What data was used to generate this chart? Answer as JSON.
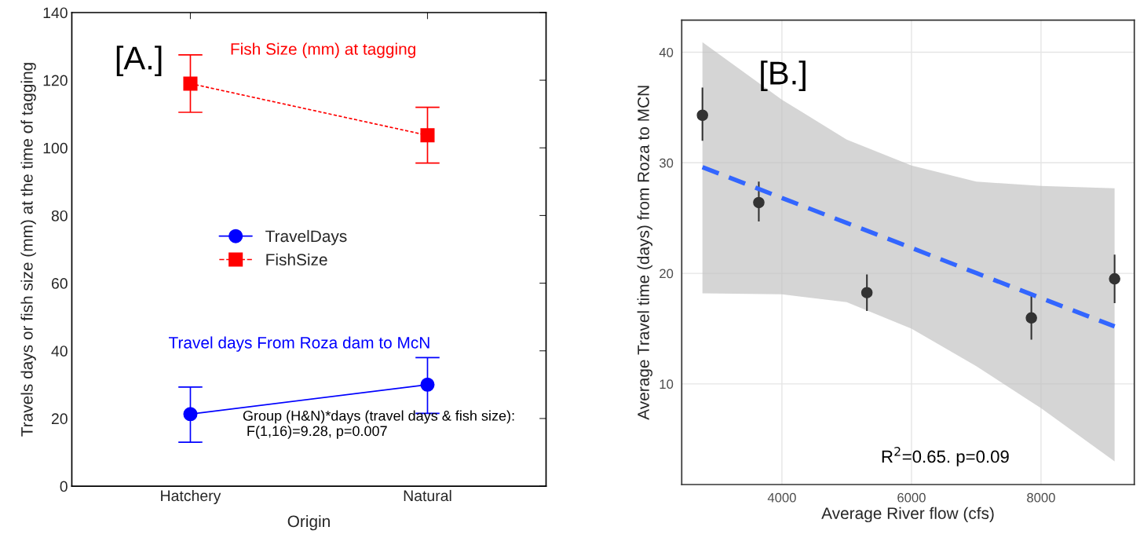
{
  "chart_data": [
    {
      "type": "line",
      "categories": [
        "Hatchery",
        "Natural"
      ],
      "xlabel": "Origin",
      "ylabel": "Travels days or fish size (mm) at the time of tagging",
      "series": [
        {
          "name": "TravelDays",
          "color": "#0000ff",
          "values": [
            21.3,
            30
          ],
          "errors": [
            [
              13,
              29.3
            ],
            [
              21.5,
              38
            ]
          ],
          "marker": "circle",
          "line_style": "solid"
        },
        {
          "name": "FishSize",
          "color": "#ff0000",
          "values": [
            119,
            103.7
          ],
          "errors": [
            [
              110.5,
              127.5
            ],
            [
              95.5,
              112
            ]
          ],
          "marker": "square",
          "line_style": "dashed"
        }
      ],
      "ylim": [
        0,
        140
      ],
      "yticks": [
        0,
        20,
        40,
        60,
        80,
        100,
        120,
        140
      ],
      "grid": false,
      "legend": "center left",
      "annotations": [
        "[A.]",
        "Fish Size (mm) at tagging",
        "Travel days From Roza dam to McN",
        "Group (H&N)*days (travel days & fish size):\n F(1,16)=9.28, p=0.007"
      ]
    },
    {
      "type": "scatter",
      "xlabel": "Average River flow (cfs)",
      "ylabel": "Average Travel time (days) from Roza to MCN",
      "series": [
        {
          "type": "scatter",
          "color": "#333333",
          "x": [
            2773,
            3643,
            5312,
            7851,
            9136
          ],
          "values": [
            34.3,
            26.4,
            18.25,
            15.97,
            19.5
          ],
          "errors": [
            [
              32.0,
              36.8
            ],
            [
              24.7,
              28.3
            ],
            [
              16.6,
              19.9
            ],
            [
              14.0,
              18.0
            ],
            [
              17.3,
              21.7
            ]
          ],
          "marker": "circle"
        },
        {
          "type": "line",
          "color": "#3366ff",
          "line_style": "dashed",
          "marker": "none",
          "x": [
            2773,
            4000,
            5000,
            6000,
            7000,
            8000,
            9136
          ],
          "values": [
            29.6,
            26.82,
            24.56,
            22.3,
            20.03,
            17.77,
            15.2
          ],
          "lower": [
            18.2,
            18.1,
            17.4,
            15.0,
            11.6,
            7.8,
            3.0
          ],
          "upper": [
            40.9,
            35.7,
            32.1,
            29.75,
            28.3,
            27.9,
            27.7
          ]
        }
      ],
      "xlim": [
        2453,
        9440
      ],
      "xticks": [
        4000,
        6000,
        8000
      ],
      "ylim": [
        0.9,
        42.9
      ],
      "yticks": [
        10,
        20,
        30,
        40
      ],
      "grid": true,
      "annotations": [
        "[B.]",
        "R$^{2}$=0.65. p=0.09"
      ]
    }
  ]
}
